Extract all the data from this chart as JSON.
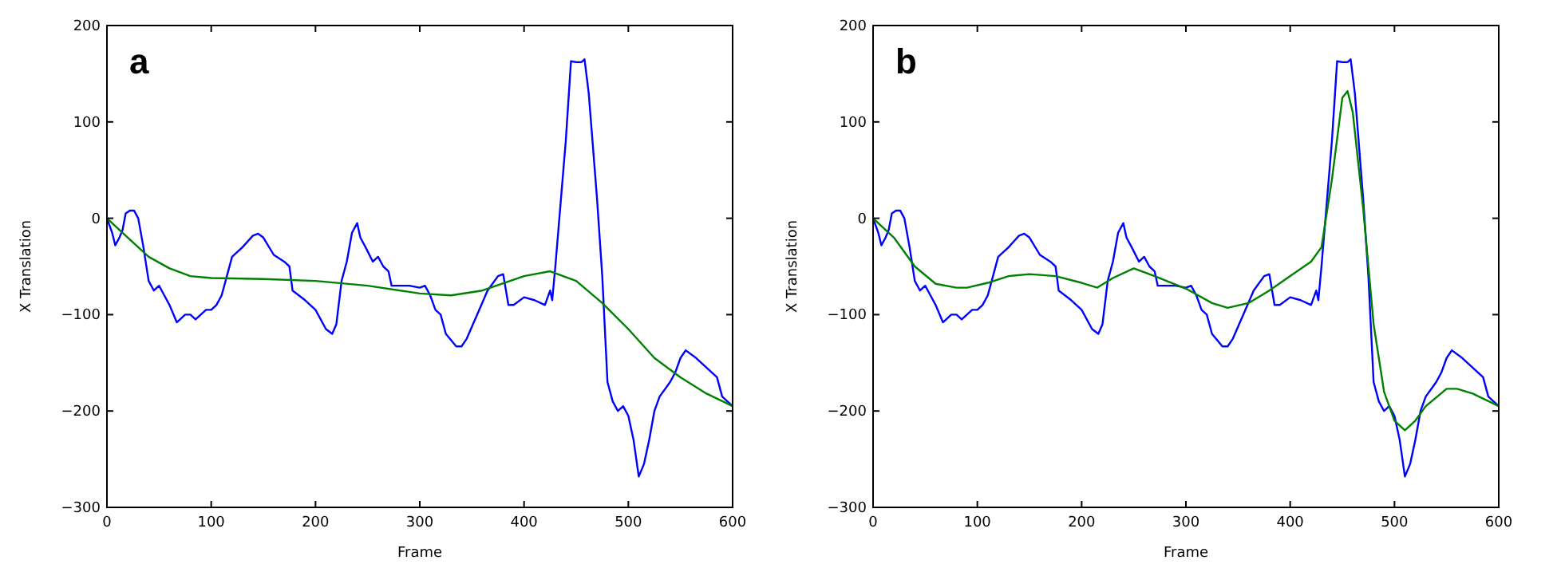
{
  "chart_data": [
    {
      "type": "line",
      "title": "a",
      "xlabel": "Frame",
      "ylabel": "X Translation",
      "xlim": [
        0,
        600
      ],
      "xticks": [
        0,
        100,
        200,
        300,
        400,
        500,
        600
      ],
      "ylim": [
        -300,
        200
      ],
      "yticks": [
        {
          "value": -300,
          "label": "−300"
        },
        {
          "value": -200,
          "label": "−200"
        },
        {
          "value": -100,
          "label": "−100"
        },
        0,
        100,
        200
      ],
      "grid": false,
      "series": [
        {
          "color": "#0000ff",
          "x": [
            0,
            5,
            8,
            12,
            15,
            18,
            22,
            26,
            30,
            35,
            40,
            45,
            50,
            55,
            60,
            67,
            75,
            80,
            85,
            90,
            95,
            100,
            105,
            110,
            115,
            120,
            130,
            140,
            145,
            150,
            160,
            170,
            175,
            178,
            190,
            200,
            210,
            216,
            220,
            225,
            230,
            235,
            240,
            243,
            248,
            255,
            260,
            265,
            270,
            273,
            280,
            290,
            300,
            305,
            310,
            315,
            320,
            325,
            335,
            340,
            345,
            355,
            365,
            375,
            380,
            385,
            390,
            400,
            410,
            420,
            425,
            427,
            430,
            440,
            445,
            450,
            455,
            458,
            462,
            470,
            475,
            480,
            485,
            490,
            495,
            500,
            505,
            510,
            515,
            520,
            525,
            530,
            540,
            545,
            550,
            555,
            565,
            570,
            580,
            585,
            590,
            600
          ],
          "values": [
            0,
            -15,
            -28,
            -20,
            -12,
            5,
            8,
            8,
            0,
            -30,
            -65,
            -75,
            -70,
            -80,
            -90,
            -108,
            -100,
            -100,
            -105,
            -100,
            -95,
            -95,
            -90,
            -80,
            -60,
            -40,
            -30,
            -18,
            -16,
            -20,
            -38,
            -45,
            -50,
            -75,
            -85,
            -95,
            -115,
            -120,
            -110,
            -65,
            -45,
            -15,
            -5,
            -20,
            -30,
            -45,
            -40,
            -50,
            -55,
            -70,
            -70,
            -70,
            -72,
            -70,
            -80,
            -95,
            -100,
            -120,
            -133,
            -133,
            -125,
            -100,
            -75,
            -60,
            -58,
            -90,
            -90,
            -82,
            -85,
            -90,
            -75,
            -85,
            -50,
            80,
            163,
            162,
            162,
            165,
            130,
            20,
            -60,
            -170,
            -190,
            -200,
            -195,
            -205,
            -230,
            -268,
            -255,
            -230,
            -200,
            -185,
            -170,
            -160,
            -145,
            -137,
            -145,
            -150,
            -160,
            -165,
            -185,
            -195
          ]
        },
        {
          "color": "#008000",
          "x": [
            0,
            20,
            40,
            60,
            80,
            100,
            150,
            200,
            250,
            300,
            330,
            360,
            400,
            425,
            450,
            475,
            500,
            525,
            550,
            575,
            600
          ],
          "values": [
            0,
            -20,
            -40,
            -52,
            -60,
            -62,
            -63,
            -65,
            -70,
            -78,
            -80,
            -75,
            -60,
            -55,
            -65,
            -88,
            -115,
            -145,
            -165,
            -182,
            -195
          ]
        }
      ]
    },
    {
      "type": "line",
      "title": "b",
      "xlabel": "Frame",
      "ylabel": "X Translation",
      "xlim": [
        0,
        600
      ],
      "xticks": [
        0,
        100,
        200,
        300,
        400,
        500,
        600
      ],
      "ylim": [
        -300,
        200
      ],
      "yticks": [
        {
          "value": -300,
          "label": "−300"
        },
        {
          "value": -200,
          "label": "−200"
        },
        {
          "value": -100,
          "label": "−100"
        },
        0,
        100,
        200
      ],
      "grid": false,
      "series": [
        {
          "color": "#0000ff",
          "x": [
            0,
            5,
            8,
            12,
            15,
            18,
            22,
            26,
            30,
            35,
            40,
            45,
            50,
            55,
            60,
            67,
            75,
            80,
            85,
            90,
            95,
            100,
            105,
            110,
            115,
            120,
            130,
            140,
            145,
            150,
            160,
            170,
            175,
            178,
            190,
            200,
            210,
            216,
            220,
            225,
            230,
            235,
            240,
            243,
            248,
            255,
            260,
            265,
            270,
            273,
            280,
            290,
            300,
            305,
            310,
            315,
            320,
            325,
            335,
            340,
            345,
            355,
            365,
            375,
            380,
            385,
            390,
            400,
            410,
            420,
            425,
            427,
            430,
            440,
            445,
            450,
            455,
            458,
            462,
            470,
            475,
            480,
            485,
            490,
            495,
            500,
            505,
            510,
            515,
            520,
            525,
            530,
            540,
            545,
            550,
            555,
            565,
            570,
            580,
            585,
            590,
            600
          ],
          "values": [
            0,
            -15,
            -28,
            -20,
            -12,
            5,
            8,
            8,
            0,
            -30,
            -65,
            -75,
            -70,
            -80,
            -90,
            -108,
            -100,
            -100,
            -105,
            -100,
            -95,
            -95,
            -90,
            -80,
            -60,
            -40,
            -30,
            -18,
            -16,
            -20,
            -38,
            -45,
            -50,
            -75,
            -85,
            -95,
            -115,
            -120,
            -110,
            -65,
            -45,
            -15,
            -5,
            -20,
            -30,
            -45,
            -40,
            -50,
            -55,
            -70,
            -70,
            -70,
            -72,
            -70,
            -80,
            -95,
            -100,
            -120,
            -133,
            -133,
            -125,
            -100,
            -75,
            -60,
            -58,
            -90,
            -90,
            -82,
            -85,
            -90,
            -75,
            -85,
            -50,
            80,
            163,
            162,
            162,
            165,
            130,
            20,
            -60,
            -170,
            -190,
            -200,
            -195,
            -205,
            -230,
            -268,
            -255,
            -230,
            -200,
            -185,
            -170,
            -160,
            -145,
            -137,
            -145,
            -150,
            -160,
            -165,
            -185,
            -195
          ]
        },
        {
          "color": "#008000",
          "x": [
            0,
            20,
            40,
            60,
            80,
            90,
            110,
            130,
            150,
            175,
            200,
            215,
            230,
            250,
            270,
            300,
            325,
            340,
            360,
            380,
            400,
            420,
            430,
            440,
            450,
            455,
            460,
            470,
            480,
            490,
            500,
            510,
            520,
            530,
            550,
            560,
            575,
            600
          ],
          "values": [
            0,
            -20,
            -50,
            -68,
            -72,
            -72,
            -67,
            -60,
            -58,
            -60,
            -67,
            -72,
            -62,
            -52,
            -60,
            -73,
            -88,
            -93,
            -88,
            -75,
            -60,
            -45,
            -30,
            40,
            125,
            132,
            110,
            10,
            -110,
            -180,
            -210,
            -220,
            -210,
            -195,
            -177,
            -177,
            -182,
            -195
          ]
        }
      ]
    }
  ]
}
